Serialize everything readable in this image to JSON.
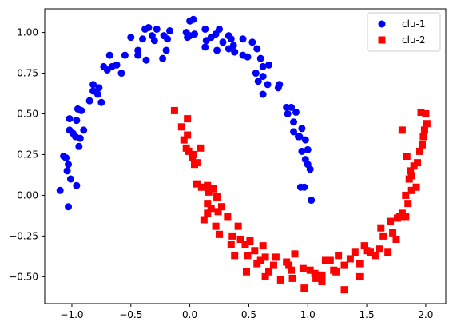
{
  "chart_data": {
    "type": "scatter",
    "title": "",
    "xlabel": "",
    "ylabel": "",
    "xlim": [
      -1.23,
      2.17
    ],
    "ylim": [
      -0.665,
      1.145
    ],
    "xticks": [
      -1.0,
      -0.5,
      0.0,
      0.5,
      1.0,
      1.5,
      2.0
    ],
    "xtick_labels": [
      "−1.0",
      "−0.5",
      "0.0",
      "0.5",
      "1.0",
      "1.5",
      "2.0"
    ],
    "yticks": [
      -0.5,
      -0.25,
      0.0,
      0.25,
      0.5,
      0.75,
      1.0
    ],
    "ytick_labels": [
      "−0.50",
      "−0.25",
      "0.00",
      "0.25",
      "0.50",
      "0.75",
      "1.00"
    ],
    "grid": false,
    "legend_position": "top-right",
    "series": [
      {
        "name": "clu-1",
        "marker": "circle",
        "color": "#0000ff",
        "points": [
          [
            -1.07,
            0.24
          ],
          [
            -1.1,
            0.03
          ],
          [
            -1.05,
            0.23
          ],
          [
            -1.03,
            0.19
          ],
          [
            -1.04,
            0.15
          ],
          [
            -1.01,
            0.1
          ],
          [
            -1.03,
            -0.07
          ],
          [
            -0.96,
            0.06
          ],
          [
            -1.02,
            0.47
          ],
          [
            -1.02,
            0.4
          ],
          [
            -0.99,
            0.38
          ],
          [
            -0.97,
            0.36
          ],
          [
            -0.96,
            0.46
          ],
          [
            -0.95,
            0.53
          ],
          [
            -0.92,
            0.52
          ],
          [
            -0.93,
            0.35
          ],
          [
            -0.94,
            0.3
          ],
          [
            -0.9,
            0.4
          ],
          [
            -0.85,
            0.58
          ],
          [
            -0.82,
            0.68
          ],
          [
            -0.82,
            0.64
          ],
          [
            -0.78,
            0.62
          ],
          [
            -0.75,
            0.57
          ],
          [
            -0.77,
            0.66
          ],
          [
            -0.73,
            0.79
          ],
          [
            -0.7,
            0.77
          ],
          [
            -0.66,
            0.79
          ],
          [
            -0.68,
            0.86
          ],
          [
            -0.62,
            0.8
          ],
          [
            -0.58,
            0.75
          ],
          [
            -0.55,
            0.86
          ],
          [
            -0.5,
            0.97
          ],
          [
            -0.44,
            0.89
          ],
          [
            -0.44,
            0.86
          ],
          [
            -0.4,
            0.96
          ],
          [
            -0.38,
            1.02
          ],
          [
            -0.35,
            1.03
          ],
          [
            -0.32,
            0.98
          ],
          [
            -0.37,
            0.83
          ],
          [
            -0.3,
            0.95
          ],
          [
            -0.28,
            1.02
          ],
          [
            -0.22,
            0.98
          ],
          [
            -0.19,
            0.96
          ],
          [
            -0.17,
            1.01
          ],
          [
            -0.2,
            0.89
          ],
          [
            -0.23,
            0.84
          ],
          [
            -0.03,
            1.0
          ],
          [
            0.0,
            1.07
          ],
          [
            0.03,
            1.08
          ],
          [
            0.04,
            0.99
          ],
          [
            -0.02,
            0.97
          ],
          [
            0.0,
            0.98
          ],
          [
            0.13,
            1.02
          ],
          [
            0.14,
            0.95
          ],
          [
            0.13,
            0.91
          ],
          [
            0.18,
            0.97
          ],
          [
            0.22,
            0.99
          ],
          [
            0.25,
            1.02
          ],
          [
            0.28,
            0.94
          ],
          [
            0.33,
            0.98
          ],
          [
            0.23,
            0.89
          ],
          [
            0.33,
            0.9
          ],
          [
            0.35,
            0.96
          ],
          [
            0.37,
            0.92
          ],
          [
            0.38,
            0.88
          ],
          [
            0.45,
            0.96
          ],
          [
            0.45,
            0.86
          ],
          [
            0.49,
            0.85
          ],
          [
            0.53,
            0.94
          ],
          [
            0.57,
            0.9
          ],
          [
            0.6,
            0.84
          ],
          [
            0.62,
            0.79
          ],
          [
            0.67,
            0.8
          ],
          [
            0.56,
            0.75
          ],
          [
            0.58,
            0.7
          ],
          [
            0.62,
            0.73
          ],
          [
            0.66,
            0.68
          ],
          [
            0.62,
            0.62
          ],
          [
            0.75,
            0.66
          ],
          [
            0.76,
            0.68
          ],
          [
            0.83,
            0.5
          ],
          [
            0.82,
            0.54
          ],
          [
            0.86,
            0.54
          ],
          [
            0.88,
            0.45
          ],
          [
            0.9,
            0.51
          ],
          [
            0.88,
            0.39
          ],
          [
            0.92,
            0.36
          ],
          [
            0.95,
            0.41
          ],
          [
            0.93,
            0.36
          ],
          [
            0.95,
            0.27
          ],
          [
            0.98,
            0.34
          ],
          [
            1.0,
            0.28
          ],
          [
            0.98,
            0.22
          ],
          [
            1.0,
            0.19
          ],
          [
            1.02,
            0.16
          ],
          [
            0.94,
            0.05
          ],
          [
            0.97,
            0.05
          ],
          [
            1.03,
            -0.03
          ]
        ]
      },
      {
        "name": "clu-2",
        "marker": "square",
        "color": "#ff0000",
        "points": [
          [
            -0.13,
            0.52
          ],
          [
            -0.07,
            0.42
          ],
          [
            -0.02,
            0.47
          ],
          [
            -0.02,
            0.37
          ],
          [
            -0.05,
            0.34
          ],
          [
            -0.01,
            0.27
          ],
          [
            -0.03,
            0.29
          ],
          [
            0.02,
            0.23
          ],
          [
            0.03,
            0.25
          ],
          [
            0.04,
            0.19
          ],
          [
            0.09,
            0.29
          ],
          [
            0.06,
            0.2
          ],
          [
            0.06,
            0.07
          ],
          [
            0.1,
            0.05
          ],
          [
            0.15,
            0.06
          ],
          [
            0.16,
            0.02
          ],
          [
            0.2,
            0.04
          ],
          [
            0.15,
            -0.05
          ],
          [
            0.18,
            -0.08
          ],
          [
            0.15,
            -0.11
          ],
          [
            0.12,
            -0.15
          ],
          [
            0.23,
            -0.01
          ],
          [
            0.24,
            -0.1
          ],
          [
            0.22,
            -0.19
          ],
          [
            0.25,
            -0.24
          ],
          [
            0.27,
            -0.07
          ],
          [
            0.32,
            -0.13
          ],
          [
            0.36,
            -0.25
          ],
          [
            0.35,
            -0.3
          ],
          [
            0.41,
            -0.19
          ],
          [
            0.43,
            -0.27
          ],
          [
            0.38,
            -0.37
          ],
          [
            0.47,
            -0.3
          ],
          [
            0.49,
            -0.37
          ],
          [
            0.48,
            -0.47
          ],
          [
            0.51,
            -0.28
          ],
          [
            0.55,
            -0.34
          ],
          [
            0.57,
            -0.42
          ],
          [
            0.6,
            -0.4
          ],
          [
            0.62,
            -0.31
          ],
          [
            0.64,
            -0.38
          ],
          [
            0.64,
            -0.5
          ],
          [
            0.67,
            -0.47
          ],
          [
            0.71,
            -0.43
          ],
          [
            0.73,
            -0.38
          ],
          [
            0.77,
            -0.52
          ],
          [
            0.82,
            -0.41
          ],
          [
            0.84,
            -0.43
          ],
          [
            0.86,
            -0.46
          ],
          [
            0.87,
            -0.51
          ],
          [
            0.89,
            -0.36
          ],
          [
            0.96,
            -0.45
          ],
          [
            0.97,
            -0.57
          ],
          [
            1.02,
            -0.46
          ],
          [
            1.06,
            -0.48
          ],
          [
            1.07,
            -0.51
          ],
          [
            1.12,
            -0.49
          ],
          [
            1.12,
            -0.53
          ],
          [
            1.15,
            -0.4
          ],
          [
            1.19,
            -0.4
          ],
          [
            1.22,
            -0.46
          ],
          [
            1.24,
            -0.47
          ],
          [
            1.26,
            -0.37
          ],
          [
            1.31,
            -0.58
          ],
          [
            1.31,
            -0.43
          ],
          [
            1.36,
            -0.39
          ],
          [
            1.4,
            -0.35
          ],
          [
            1.44,
            -0.5
          ],
          [
            1.44,
            -0.42
          ],
          [
            1.48,
            -0.31
          ],
          [
            1.5,
            -0.34
          ],
          [
            1.53,
            -0.35
          ],
          [
            1.57,
            -0.37
          ],
          [
            1.61,
            -0.33
          ],
          [
            1.62,
            -0.2
          ],
          [
            1.64,
            -0.25
          ],
          [
            1.68,
            -0.35
          ],
          [
            1.7,
            -0.16
          ],
          [
            1.72,
            -0.23
          ],
          [
            1.75,
            -0.27
          ],
          [
            1.76,
            -0.14
          ],
          [
            1.78,
            -0.13
          ],
          [
            1.8,
            -0.11
          ],
          [
            1.83,
            -0.13
          ],
          [
            1.83,
            0.0
          ],
          [
            1.84,
            0.24
          ],
          [
            1.86,
            0.1
          ],
          [
            1.85,
            -0.05
          ],
          [
            1.88,
            0.03
          ],
          [
            1.9,
            0.18
          ],
          [
            1.92,
            0.05
          ],
          [
            1.93,
            0.2
          ],
          [
            1.95,
            0.27
          ],
          [
            1.97,
            0.31
          ],
          [
            1.98,
            0.36
          ],
          [
            1.99,
            0.4
          ],
          [
            1.96,
            0.51
          ],
          [
            2.0,
            0.5
          ],
          [
            2.01,
            0.44
          ],
          [
            1.87,
            0.15
          ],
          [
            1.8,
            0.4
          ],
          [
            1.88,
            0.12
          ]
        ]
      }
    ]
  }
}
